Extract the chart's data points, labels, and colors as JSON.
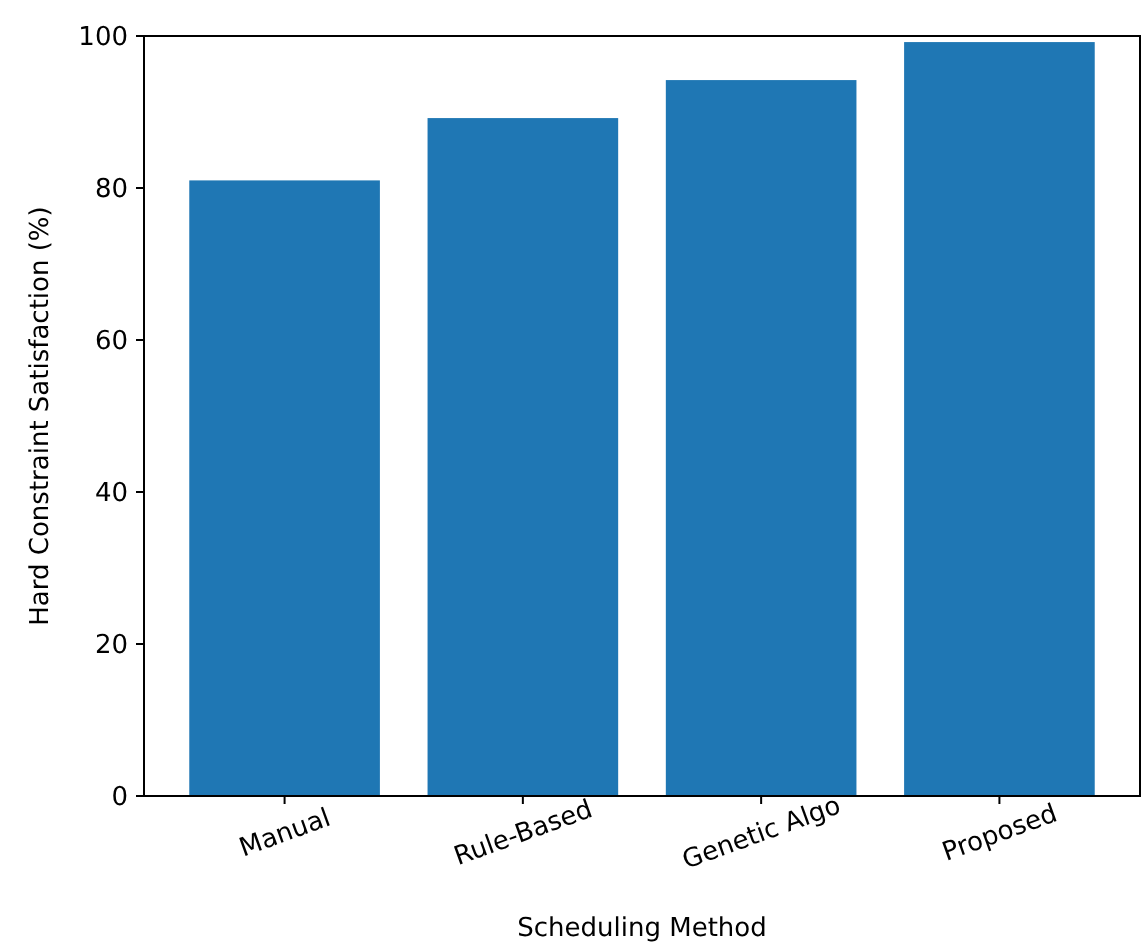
{
  "chart_data": {
    "type": "bar",
    "xlabel": "Scheduling Method",
    "ylabel": "Hard Constraint Satisfaction (%)",
    "categories": [
      "Manual",
      "Rule-Based",
      "Genetic Algo",
      "Proposed"
    ],
    "values": [
      81,
      89.2,
      94.2,
      99.2
    ],
    "color": "#1f77b4",
    "ylim": [
      0,
      100
    ],
    "yticks": [
      0,
      20,
      40,
      60,
      80,
      100
    ],
    "grid": false
  }
}
